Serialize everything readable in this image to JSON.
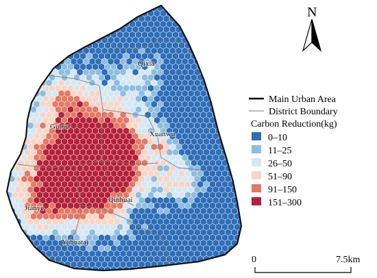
{
  "north_arrow": {
    "label": "N"
  },
  "legend": {
    "main_urban_area": "Main Urban Area",
    "district_boundary": "District Boundary",
    "title": "Carbon Reduction(kg)",
    "classes": [
      {
        "label": "0–10",
        "color": "#2f6eb8"
      },
      {
        "label": "11–25",
        "color": "#8fbddd"
      },
      {
        "label": "26–50",
        "color": "#d6e7f3"
      },
      {
        "label": "51–90",
        "color": "#f7d6c8"
      },
      {
        "label": "91–150",
        "color": "#e27a67"
      },
      {
        "label": "151–300",
        "color": "#b5213a"
      }
    ]
  },
  "scale_bar": {
    "start": "0",
    "end": "7.5km"
  },
  "districts": [
    {
      "name": "Qixia"
    },
    {
      "name": "Gulou"
    },
    {
      "name": "Xuanwu"
    },
    {
      "name": "Qinhuai"
    },
    {
      "name": "Jianye"
    },
    {
      "name": "Yuhuatai"
    }
  ]
}
